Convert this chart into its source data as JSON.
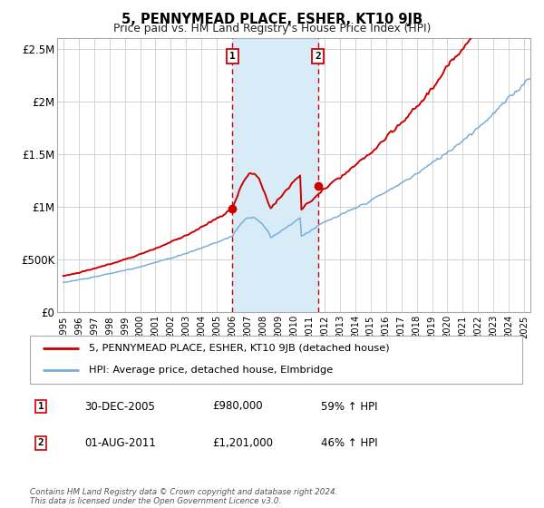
{
  "title": "5, PENNYMEAD PLACE, ESHER, KT10 9JB",
  "subtitle": "Price paid vs. HM Land Registry's House Price Index (HPI)",
  "legend_label_red": "5, PENNYMEAD PLACE, ESHER, KT10 9JB (detached house)",
  "legend_label_blue": "HPI: Average price, detached house, Elmbridge",
  "annotation1_label": "1",
  "annotation1_date": "30-DEC-2005",
  "annotation1_price": "£980,000",
  "annotation1_pct": "59% ↑ HPI",
  "annotation2_label": "2",
  "annotation2_date": "01-AUG-2011",
  "annotation2_price": "£1,201,000",
  "annotation2_pct": "46% ↑ HPI",
  "footer": "Contains HM Land Registry data © Crown copyright and database right 2024.\nThis data is licensed under the Open Government Licence v3.0.",
  "red_color": "#cc0000",
  "blue_color": "#7aaddc",
  "shade_color": "#d8ecf8",
  "vline_color": "#cc0000",
  "ylim": [
    0,
    2600000
  ],
  "yticks": [
    0,
    500000,
    1000000,
    1500000,
    2000000,
    2500000
  ],
  "ytick_labels": [
    "£0",
    "£500K",
    "£1M",
    "£1.5M",
    "£2M",
    "£2.5M"
  ],
  "sale1_x": 2005.99,
  "sale1_y": 980000,
  "sale2_x": 2011.58,
  "sale2_y": 1201000,
  "vline1_x": 2005.99,
  "vline2_x": 2011.58,
  "shade_x1": 2005.99,
  "shade_x2": 2011.58,
  "xlim_left": 1994.6,
  "xlim_right": 2025.4
}
